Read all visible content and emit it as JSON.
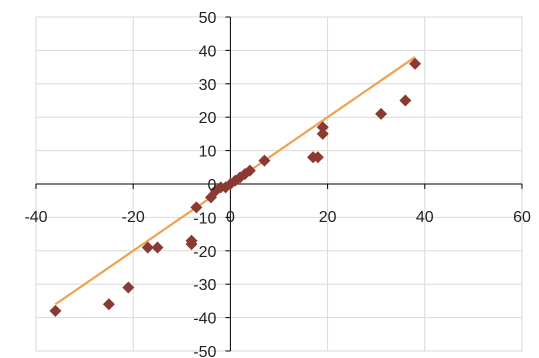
{
  "chart_data": {
    "type": "scatter",
    "title": "",
    "xlabel": "",
    "ylabel": "",
    "xlim": [
      -40,
      60
    ],
    "ylim": [
      -50,
      50
    ],
    "x_ticks": [
      -40,
      -20,
      0,
      20,
      40,
      60
    ],
    "y_ticks": [
      -50,
      -40,
      -30,
      -20,
      -10,
      0,
      10,
      20,
      30,
      40,
      50
    ],
    "x_tick_labels": [
      "-40",
      "-20",
      "0",
      "20",
      "40",
      "60"
    ],
    "y_tick_labels": [
      "-50",
      "-40",
      "-30",
      "-20",
      "-10",
      "0",
      "10",
      "20",
      "30",
      "40",
      "50"
    ],
    "grid": true,
    "series": [
      {
        "x": [
          -36,
          -25,
          -21,
          -17,
          -15,
          -8,
          -8,
          -7,
          -4,
          -3,
          -2,
          -1,
          0,
          1,
          2,
          3,
          4,
          7,
          17,
          18,
          19,
          19,
          31,
          36,
          38
        ],
        "y": [
          -38,
          -36,
          -31,
          -19,
          -19,
          -18,
          -17,
          -7,
          -4,
          -2,
          -1,
          -1,
          0,
          1,
          2,
          3,
          4,
          7,
          8,
          8,
          15,
          17,
          21,
          25,
          36
        ],
        "marker": "diamond",
        "color": "#8b3a33"
      }
    ],
    "trendline": {
      "x": [
        -36,
        38
      ],
      "y": [
        -36,
        38
      ],
      "color": "#f0a050"
    }
  }
}
